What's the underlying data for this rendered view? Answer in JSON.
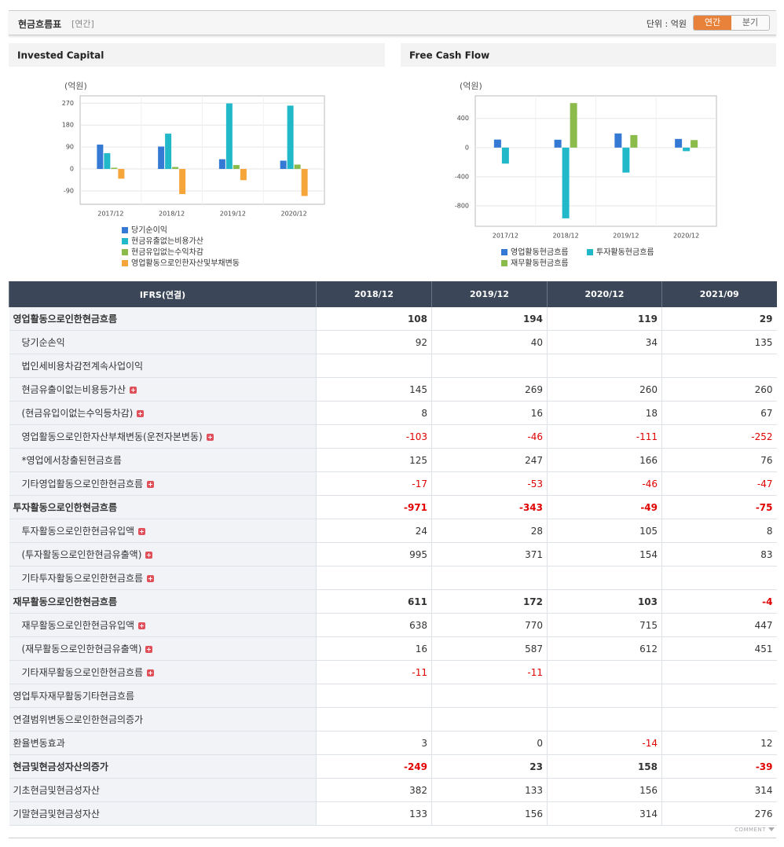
{
  "header": {
    "title": "현금흐름표",
    "period": "[연간]",
    "unit": "단위 : 억원",
    "tabs": [
      "연간",
      "분기"
    ],
    "active_tab": 0
  },
  "chart_data": [
    {
      "type": "bar",
      "title": "Invested Capital",
      "y_label": "(억원)",
      "categories": [
        "2017/12",
        "2018/12",
        "2019/12",
        "2020/12"
      ],
      "series": [
        {
          "name": "당기순이익",
          "color": "#3479d4",
          "values": [
            100,
            92,
            40,
            34
          ]
        },
        {
          "name": "현금유출없는비용가산",
          "color": "#21b9c9",
          "values": [
            65,
            145,
            269,
            260
          ]
        },
        {
          "name": "현금유입없는수익차감",
          "color": "#8bbb4b",
          "values": [
            5,
            8,
            16,
            18
          ]
        },
        {
          "name": "영업활동으로인한자산및부채변동",
          "color": "#f6a53a",
          "values": [
            -40,
            -103,
            -46,
            -111
          ]
        }
      ],
      "ylim": [
        -145,
        300
      ],
      "yticks": [
        -90,
        0,
        90,
        180,
        270
      ],
      "grid": true
    },
    {
      "type": "bar",
      "title": "Free Cash Flow",
      "y_label": "(억원)",
      "categories": [
        "2017/12",
        "2018/12",
        "2019/12",
        "2020/12"
      ],
      "series": [
        {
          "name": "영업활동현금흐름",
          "color": "#3479d4",
          "values": [
            110,
            108,
            194,
            119
          ]
        },
        {
          "name": "투자활동현금흐름",
          "color": "#21b9c9",
          "values": [
            -220,
            -971,
            -343,
            -49
          ]
        },
        {
          "name": "재무활동현금흐름",
          "color": "#8bbb4b",
          "values": [
            null,
            611,
            172,
            103
          ]
        }
      ],
      "ylim": [
        -1080,
        710
      ],
      "yticks": [
        -800,
        -400,
        0,
        400
      ],
      "grid": true
    }
  ],
  "table": {
    "header": [
      "IFRS(연결)",
      "2018/12",
      "2019/12",
      "2020/12",
      "2021/09"
    ],
    "rows": [
      {
        "label": "영업활동으로인한현금흐름",
        "values": [
          108,
          194,
          119,
          29
        ],
        "bold": true,
        "indent": false,
        "expandable": false
      },
      {
        "label": "당기순손익",
        "values": [
          92,
          40,
          34,
          135
        ],
        "bold": false,
        "indent": true,
        "expandable": false
      },
      {
        "label": "법인세비용차감전계속사업이익",
        "values": [
          null,
          null,
          null,
          null
        ],
        "bold": false,
        "indent": true,
        "expandable": false
      },
      {
        "label": "현금유출이없는비용등가산",
        "values": [
          145,
          269,
          260,
          260
        ],
        "bold": false,
        "indent": true,
        "expandable": true
      },
      {
        "label": "(현금유입이없는수익등차감)",
        "values": [
          8,
          16,
          18,
          67
        ],
        "bold": false,
        "indent": true,
        "expandable": true
      },
      {
        "label": "영업활동으로인한자산부채변동(운전자본변동)",
        "values": [
          -103,
          -46,
          -111,
          -252
        ],
        "bold": false,
        "indent": true,
        "expandable": true
      },
      {
        "label": "*영업에서창출된현금흐름",
        "values": [
          125,
          247,
          166,
          76
        ],
        "bold": false,
        "indent": true,
        "expandable": false
      },
      {
        "label": "기타영업활동으로인한현금흐름",
        "values": [
          -17,
          -53,
          -46,
          -47
        ],
        "bold": false,
        "indent": true,
        "expandable": true
      },
      {
        "label": "투자활동으로인한현금흐름",
        "values": [
          -971,
          -343,
          -49,
          -75
        ],
        "bold": true,
        "indent": false,
        "expandable": false
      },
      {
        "label": "투자활동으로인한현금유입액",
        "values": [
          24,
          28,
          105,
          8
        ],
        "bold": false,
        "indent": true,
        "expandable": true
      },
      {
        "label": "(투자활동으로인한현금유출액)",
        "values": [
          995,
          371,
          154,
          83
        ],
        "bold": false,
        "indent": true,
        "expandable": true
      },
      {
        "label": "기타투자활동으로인한현금흐름",
        "values": [
          null,
          null,
          null,
          null
        ],
        "bold": false,
        "indent": true,
        "expandable": true
      },
      {
        "label": "재무활동으로인한현금흐름",
        "values": [
          611,
          172,
          103,
          -4
        ],
        "bold": true,
        "indent": false,
        "expandable": false
      },
      {
        "label": "재무활동으로인한현금유입액",
        "values": [
          638,
          770,
          715,
          447
        ],
        "bold": false,
        "indent": true,
        "expandable": true
      },
      {
        "label": "(재무활동으로인한현금유출액)",
        "values": [
          16,
          587,
          612,
          451
        ],
        "bold": false,
        "indent": true,
        "expandable": true
      },
      {
        "label": "기타재무활동으로인한현금흐름",
        "values": [
          -11,
          -11,
          null,
          null
        ],
        "bold": false,
        "indent": true,
        "expandable": true
      },
      {
        "label": "영업투자재무활동기타현금흐름",
        "values": [
          null,
          null,
          null,
          null
        ],
        "bold": false,
        "indent": false,
        "expandable": false
      },
      {
        "label": "연결범위변동으로인한현금의증가",
        "values": [
          null,
          null,
          null,
          null
        ],
        "bold": false,
        "indent": false,
        "expandable": false
      },
      {
        "label": "환율변동효과",
        "values": [
          3,
          0,
          -14,
          12
        ],
        "bold": false,
        "indent": false,
        "expandable": false
      },
      {
        "label": "현금및현금성자산의증가",
        "values": [
          -249,
          23,
          158,
          -39
        ],
        "bold": true,
        "indent": false,
        "expandable": false
      },
      {
        "label": "기초현금및현금성자산",
        "values": [
          382,
          133,
          156,
          314
        ],
        "bold": false,
        "indent": false,
        "expandable": false
      },
      {
        "label": "기말현금및현금성자산",
        "values": [
          133,
          156,
          314,
          276
        ],
        "bold": false,
        "indent": false,
        "expandable": false
      }
    ]
  },
  "footer": "COMMENT"
}
